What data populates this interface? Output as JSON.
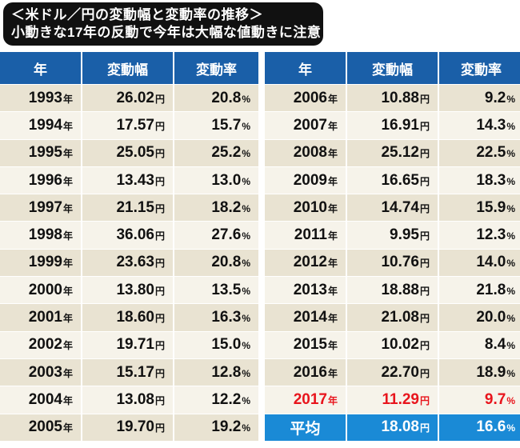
{
  "title": {
    "line1": "＜米ドル／円の変動幅と変動率の推移＞",
    "line2": "小動きな17年の反動で今年は大幅な値動きに注意！"
  },
  "headers": {
    "year": "年",
    "range": "変動幅",
    "rate": "変動率"
  },
  "units": {
    "year": "年",
    "yen": "円",
    "percent": "%"
  },
  "left_rows": [
    {
      "year": "1993",
      "range": "26.02",
      "rate": "20.8"
    },
    {
      "year": "1994",
      "range": "17.57",
      "rate": "15.7"
    },
    {
      "year": "1995",
      "range": "25.05",
      "rate": "25.2"
    },
    {
      "year": "1996",
      "range": "13.43",
      "rate": "13.0"
    },
    {
      "year": "1997",
      "range": "21.15",
      "rate": "18.2"
    },
    {
      "year": "1998",
      "range": "36.06",
      "rate": "27.6"
    },
    {
      "year": "1999",
      "range": "23.63",
      "rate": "20.8"
    },
    {
      "year": "2000",
      "range": "13.80",
      "rate": "13.5"
    },
    {
      "year": "2001",
      "range": "18.60",
      "rate": "16.3"
    },
    {
      "year": "2002",
      "range": "19.71",
      "rate": "15.0"
    },
    {
      "year": "2003",
      "range": "15.17",
      "rate": "12.8"
    },
    {
      "year": "2004",
      "range": "13.08",
      "rate": "12.2"
    },
    {
      "year": "2005",
      "range": "19.70",
      "rate": "19.2"
    }
  ],
  "right_rows": [
    {
      "year": "2006",
      "range": "10.88",
      "rate": "9.2"
    },
    {
      "year": "2007",
      "range": "16.91",
      "rate": "14.3"
    },
    {
      "year": "2008",
      "range": "25.12",
      "rate": "22.5"
    },
    {
      "year": "2009",
      "range": "16.65",
      "rate": "18.3"
    },
    {
      "year": "2010",
      "range": "14.74",
      "rate": "15.9"
    },
    {
      "year": "2011",
      "range": "9.95",
      "rate": "12.3"
    },
    {
      "year": "2012",
      "range": "10.76",
      "rate": "14.0"
    },
    {
      "year": "2013",
      "range": "18.88",
      "rate": "21.8"
    },
    {
      "year": "2014",
      "range": "21.08",
      "rate": "20.0"
    },
    {
      "year": "2015",
      "range": "10.02",
      "rate": "8.4"
    },
    {
      "year": "2016",
      "range": "22.70",
      "rate": "18.9"
    },
    {
      "year": "2017",
      "range": "11.29",
      "rate": "9.7",
      "highlight": true
    }
  ],
  "average": {
    "label": "平均",
    "range": "18.08",
    "rate": "16.6"
  },
  "colors": {
    "header_bg": "#1a5fa8",
    "average_bg": "#1a8ad6",
    "highlight_text": "#e8141c",
    "row_odd": "#e9e3d2",
    "row_even": "#f6f3ea"
  }
}
